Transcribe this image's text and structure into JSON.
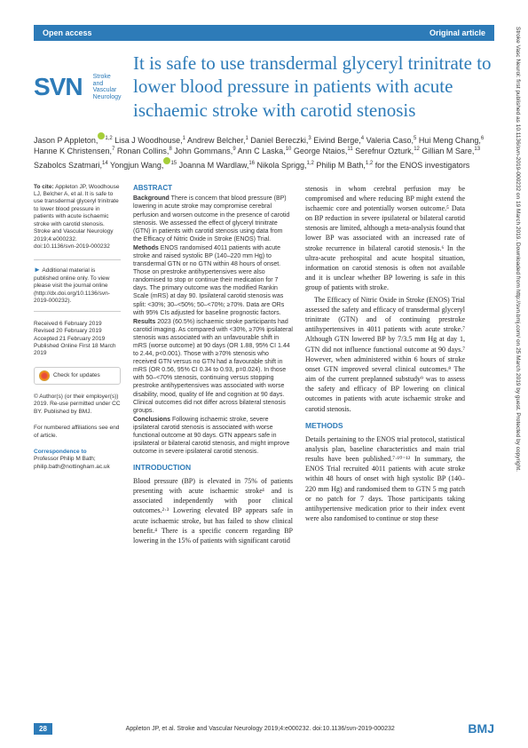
{
  "header": {
    "open_access": "Open access",
    "article_type": "Original article"
  },
  "logo": {
    "main": "SVN",
    "sub1": "Stroke and",
    "sub2": "Vascular",
    "sub3": "Neurology"
  },
  "title": "It is safe to use transdermal glyceryl trinitrate to lower blood pressure in patients with acute ischaemic stroke with carotid stenosis",
  "authors_html": "Jason P Appleton,<sup>1,2</sup> Lisa J Woodhouse,<sup>1</sup> Andrew Belcher,<sup>1</sup> Daniel Bereczki,<sup>3</sup> Eivind Berge,<sup>4</sup> Valeria Caso,<sup>5</sup> Hui Meng Chang,<sup>6</sup> Hanne K Christensen,<sup>7</sup> Ronan Collins,<sup>8</sup> John Gommans,<sup>9</sup> Ann C Laska,<sup>10</sup> George Ntaios,<sup>11</sup> Serefnur Ozturk,<sup>12</sup> Gillian M Sare,<sup>13</sup> Szabolcs Szatmari,<sup>14</sup> Yongjun Wang,<sup>15</sup> Joanna M Wardlaw,<sup>16</sup> Nikola Sprigg,<sup>1,2</sup> Philip M Bath,<sup>1,2</sup> for the ENOS investigators",
  "cite": {
    "label": "To cite:",
    "text": "Appleton JP, Woodhouse LJ, Belcher A, et al. It is safe to use transdermal glyceryl trinitrate to lower blood pressure in patients with acute ischaemic stroke with carotid stenosis. Stroke and Vascular Neurology 2019;4:e000232. doi:10.1136/svn-2019-000232"
  },
  "supplemental": "Additional material is published online only. To view please visit the journal online (http://dx.doi.org/10.1136/svn-2019-000232).",
  "dates": {
    "received": "Received 6 February 2019",
    "revised": "Revised 20 February 2019",
    "accepted": "Accepted 21 February 2019",
    "published": "Published Online First 18 March 2019"
  },
  "check_updates": "Check for updates",
  "license": "© Author(s) (or their employer(s)) 2019. Re-use permitted under CC BY. Published by BMJ.",
  "affiliations": "For numbered affiliations see end of article.",
  "correspondence": {
    "label": "Correspondence to",
    "text": "Professor Philip M Bath; philip.bath@nottingham.ac.uk"
  },
  "abstract": {
    "heading": "ABSTRACT",
    "background": "There is concern that blood pressure (BP) lowering in acute stroke may compromise cerebral perfusion and worsen outcome in the presence of carotid stenosis. We assessed the effect of glyceryl trinitrate (GTN) in patients with carotid stenosis using data from the Efficacy of Nitric Oxide in Stroke (ENOS) Trial.",
    "methods": "ENOS randomised 4011 patients with acute stroke and raised systolic BP (140–220 mm Hg) to transdermal GTN or no GTN within 48 hours of onset. Those on prestroke antihypertensives were also randomised to stop or continue their medication for 7 days. The primary outcome was the modified Rankin Scale (mRS) at day 90. Ipsilateral carotid stenosis was split: <30%; 30–<50%; 50–<70%; ≥70%. Data are ORs with 95% CIs adjusted for baseline prognostic factors.",
    "results": "2023 (60.5%) ischaemic stroke participants had carotid imaging. As compared with <30%, ≥70% ipsilateral stenosis was associated with an unfavourable shift in mRS (worse outcome) at 90 days (OR 1.88, 95% CI 1.44 to 2.44, p<0.001). Those with ≥70% stenosis who received GTN versus no GTN had a favourable shift in mRS (OR 0.56, 95% CI 0.34 to 0.93, p=0.024). In those with 50–<70% stenosis, continuing versus stopping prestroke antihypertensives was associated with worse disability, mood, quality of life and cognition at 90 days. Clinical outcomes did not differ across bilateral stenosis groups.",
    "conclusions": "Following ischaemic stroke, severe ipsilateral carotid stenosis is associated with worse functional outcome at 90 days. GTN appears safe in ipsilateral or bilateral carotid stenosis, and might improve outcome in severe ipsilateral carotid stenosis."
  },
  "introduction": {
    "heading": "INTRODUCTION",
    "text": "Blood pressure (BP) is elevated in 75% of patients presenting with acute ischaemic stroke¹ and is associated independently with poor clinical outcomes.²·³ Lowering elevated BP appears safe in acute ischaemic stroke, but has failed to show clinical benefit.⁴ There is a specific concern regarding BP lowering in the 15% of patients with significant carotid"
  },
  "right_body1": "stenosis in whom cerebral perfusion may be compromised and where reducing BP might extend the ischaemic core and potentially worsen outcome.⁵ Data on BP reduction in severe ipsilateral or bilateral carotid stenosis are limited, although a meta-analysis found that lower BP was associated with an increased rate of stroke recurrence in bilateral carotid stenosis.⁶ In the ultra-acute prehospital and acute hospital situation, information on carotid stenosis is often not available and it is unclear whether BP lowering is safe in this group of patients with stroke.",
  "right_body2": "The Efficacy of Nitric Oxide in Stroke (ENOS) Trial assessed the safety and efficacy of transdermal glyceryl trinitrate (GTN) and of continuing prestroke antihypertensives in 4011 patients with acute stroke.⁷ Although GTN lowered BP by 7/3.5 mm Hg at day 1, GTN did not influence functional outcome at 90 days.⁷ However, when administered within 6 hours of stroke onset GTN improved several clinical outcomes.⁸ The aim of the current preplanned substudy⁹ was to assess the safety and efficacy of BP lowering on clinical outcomes in patients with acute ischaemic stroke and carotid stenosis.",
  "methods": {
    "heading": "METHODS",
    "text": "Details pertaining to the ENOS trial protocol, statistical analysis plan, baseline characteristics and main trial results have been published.⁷·¹⁰⁻¹² In summary, the ENOS Trial recruited 4011 patients with acute stroke within 48 hours of onset with high systolic BP (140–220 mm Hg) and randomised them to GTN 5 mg patch or no patch for 7 days. Those participants taking antihypertensive medication prior to their index event were also randomised to continue or stop these"
  },
  "footer": {
    "page": "28",
    "cite": "Appleton JP, et al. Stroke and Vascular Neurology 2019;4:e000232. doi:10.1136/svn-2019-000232",
    "bmj": "BMJ"
  },
  "side": "Stroke Vasc Neurol: first published as 10.1136/svn-2019-000232 on 19 March 2019. Downloaded from http://svn.bmj.com/ on 25 March 2019 by guest. Protected by copyright."
}
